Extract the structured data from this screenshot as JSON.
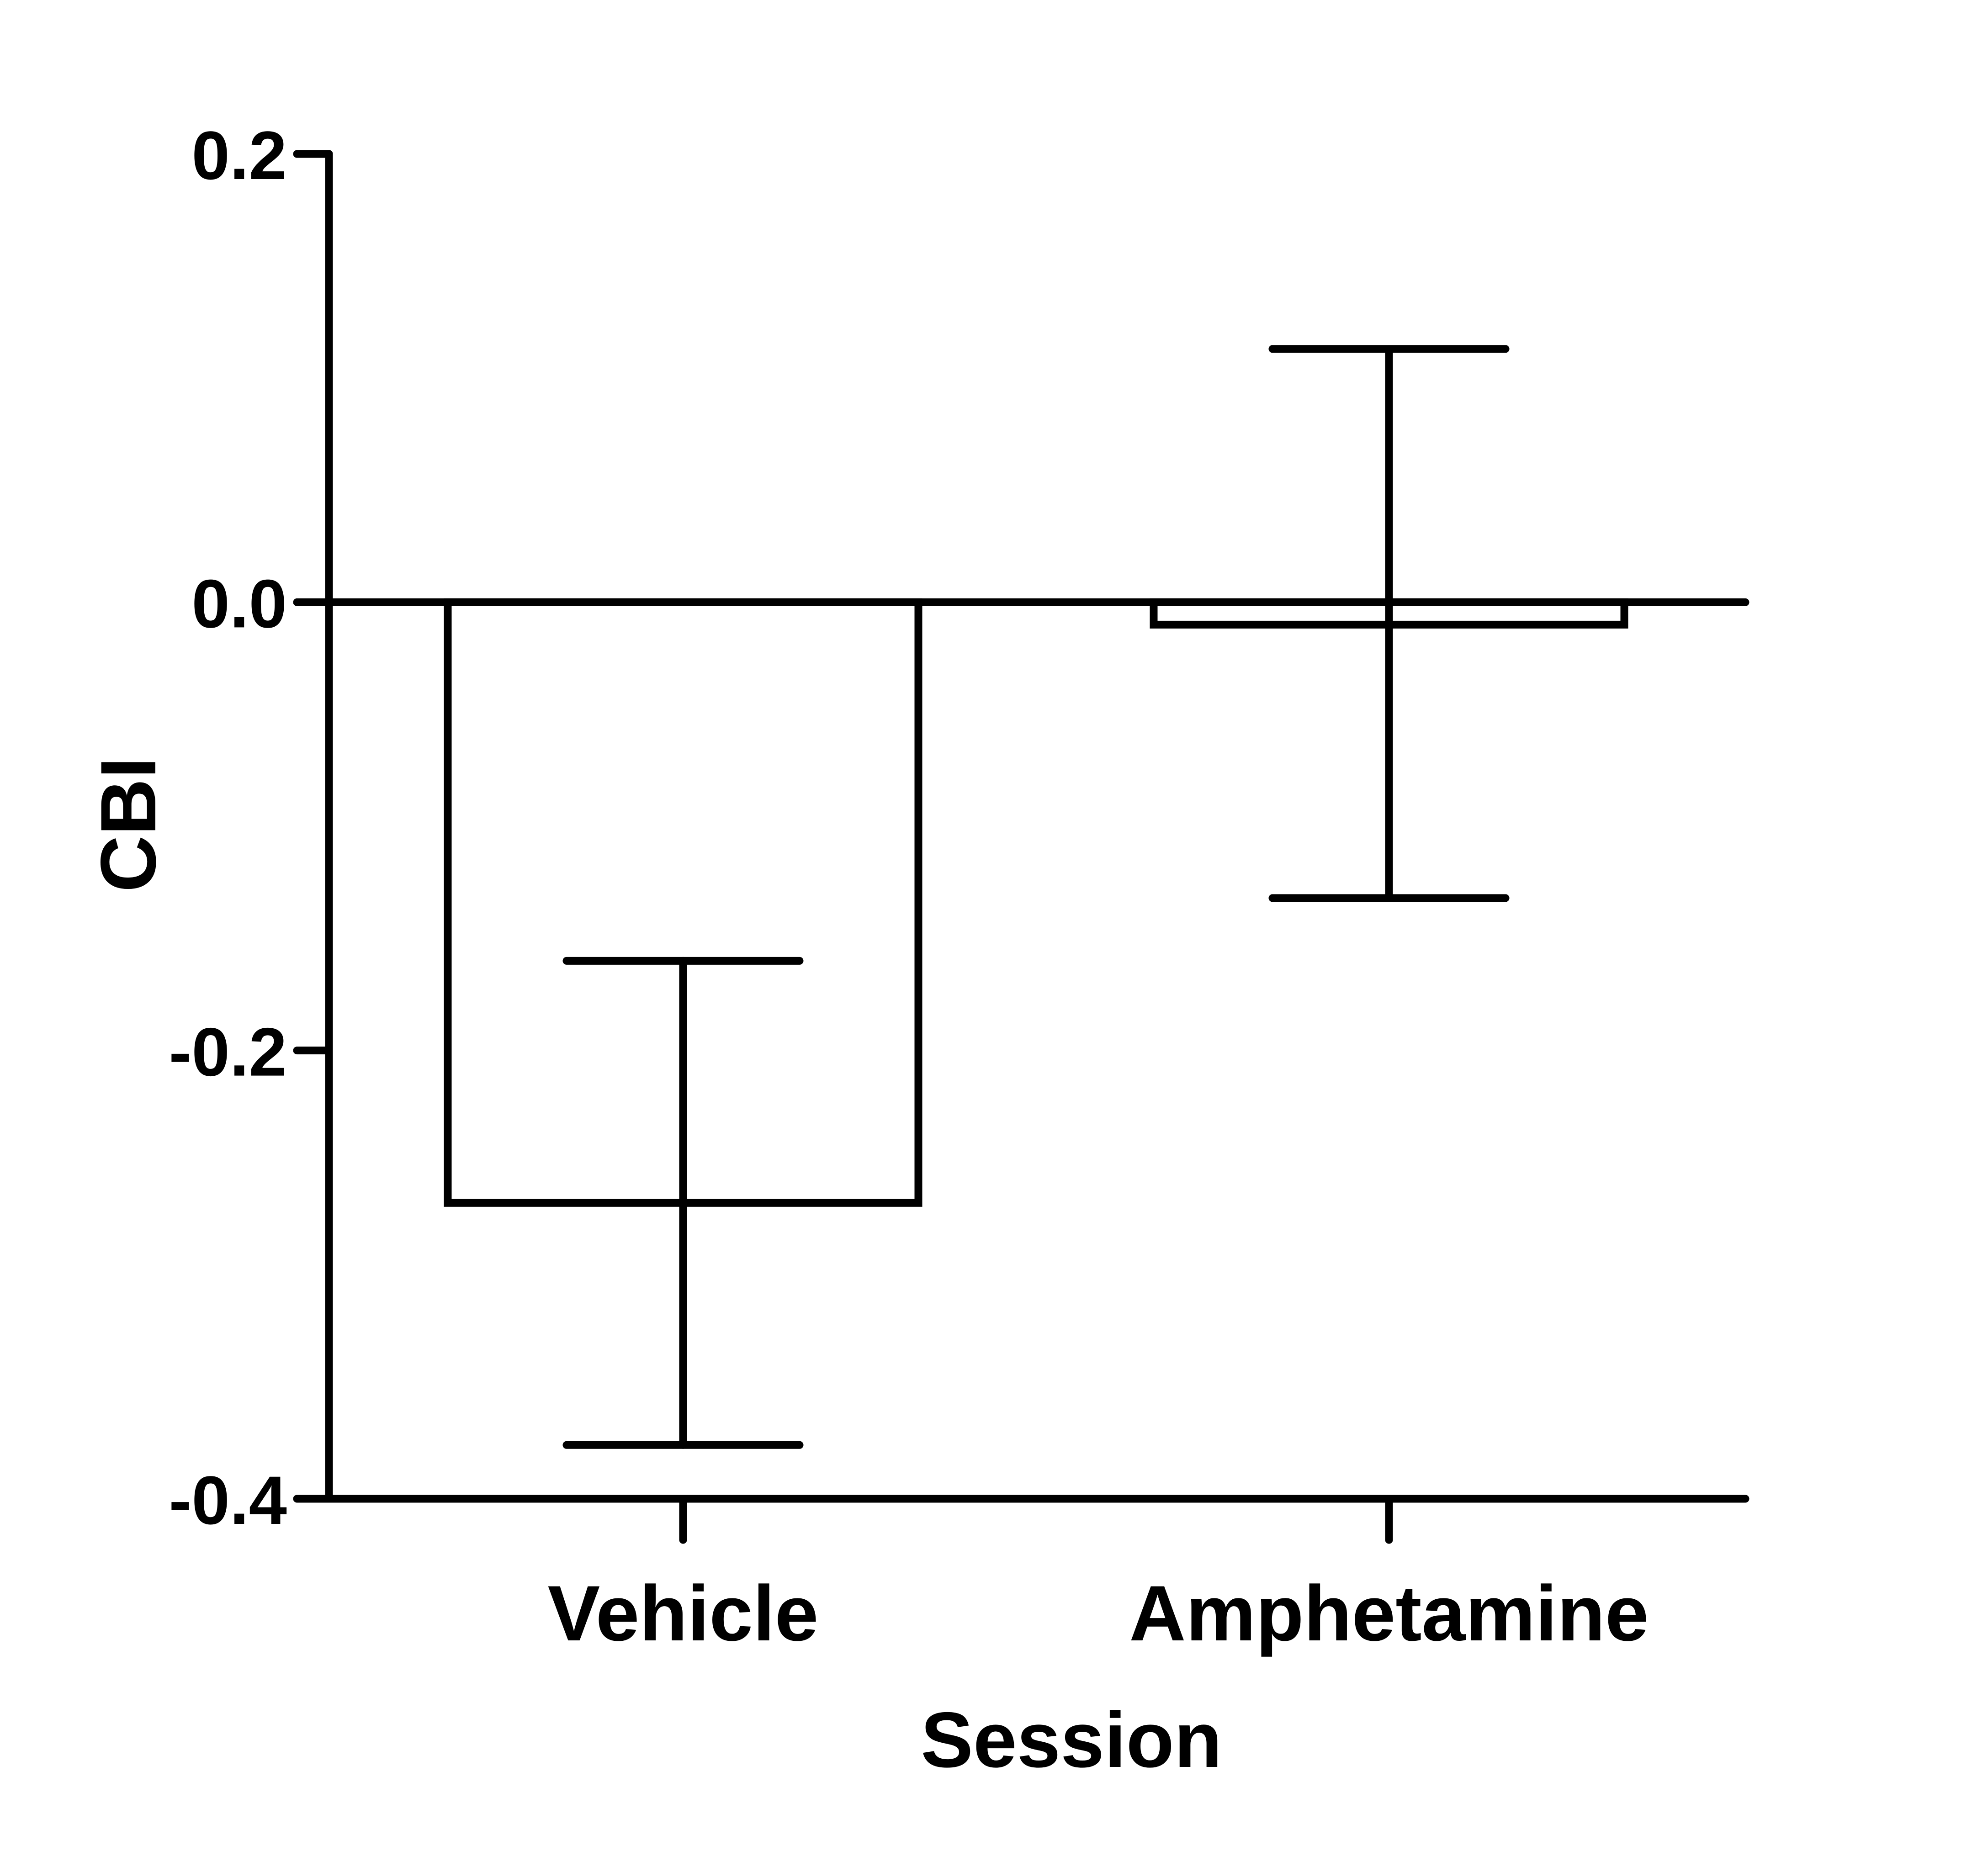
{
  "chart_data": {
    "type": "bar",
    "title": "",
    "xlabel": "Session",
    "ylabel": "CBI",
    "categories": [
      "Vehicle",
      "Amphetamine"
    ],
    "values": [
      -0.268,
      -0.01
    ],
    "errors": [
      {
        "upper": -0.16,
        "lower": -0.376
      },
      {
        "upper": 0.113,
        "lower": -0.132
      }
    ],
    "ylim": [
      -0.4,
      0.2
    ],
    "yticks": [
      {
        "value": 0.2,
        "label": "0.2"
      },
      {
        "value": 0.0,
        "label": "0.0"
      },
      {
        "value": -0.2,
        "label": "-0.2"
      },
      {
        "value": -0.4,
        "label": "-0.4"
      }
    ],
    "grid": false,
    "legend": "none",
    "colors": {
      "stroke": "#000000",
      "fill": "#ffffff"
    }
  }
}
